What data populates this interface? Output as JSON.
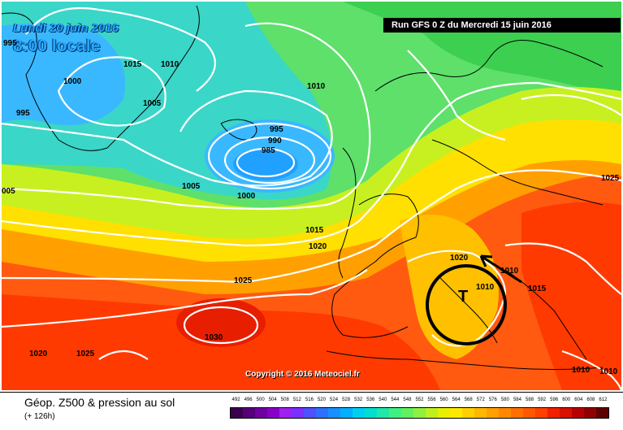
{
  "header": {
    "date_line1": "Lundi 20 juin 2016",
    "date_line2": "8:00 locale",
    "run_info": "Run GFS 0 Z du Mercredi 15 juin 2016"
  },
  "map": {
    "copyright": "Copyright © 2016 Meteociel.fr",
    "low_label": "T",
    "isobar_labels": [
      "995",
      "1015",
      "1010",
      "1000",
      "995",
      "1005",
      "1010",
      "995",
      "990",
      "985",
      "005",
      "1005",
      "1000",
      "1015",
      "1025",
      "1020",
      "1020",
      "1010",
      "1010",
      "1015",
      "1025",
      "1030",
      "1020",
      "1025",
      "1010",
      "1010"
    ]
  },
  "legend": {
    "title": "Géop. Z500 & pression au sol",
    "subtitle": "(+ 126h)",
    "scale_values": [
      "492",
      "496",
      "500",
      "504",
      "508",
      "512",
      "516",
      "520",
      "524",
      "528",
      "532",
      "536",
      "540",
      "544",
      "548",
      "552",
      "556",
      "560",
      "564",
      "568",
      "572",
      "576",
      "580",
      "584",
      "588",
      "592",
      "596",
      "600",
      "604",
      "608",
      "612"
    ],
    "scale_colors": [
      "#3a0050",
      "#55007a",
      "#7000a0",
      "#8a00c8",
      "#a020f0",
      "#7a30ff",
      "#5050ff",
      "#3070ff",
      "#1890ff",
      "#00b0ff",
      "#00d0f0",
      "#00e0d0",
      "#20e8a8",
      "#40f080",
      "#60f060",
      "#90f040",
      "#c0f020",
      "#e8f000",
      "#ffe800",
      "#ffd000",
      "#ffb800",
      "#ffa000",
      "#ff8800",
      "#ff7000",
      "#ff5800",
      "#ff4000",
      "#f02000",
      "#d81000",
      "#b80000",
      "#900000",
      "#600000"
    ]
  }
}
